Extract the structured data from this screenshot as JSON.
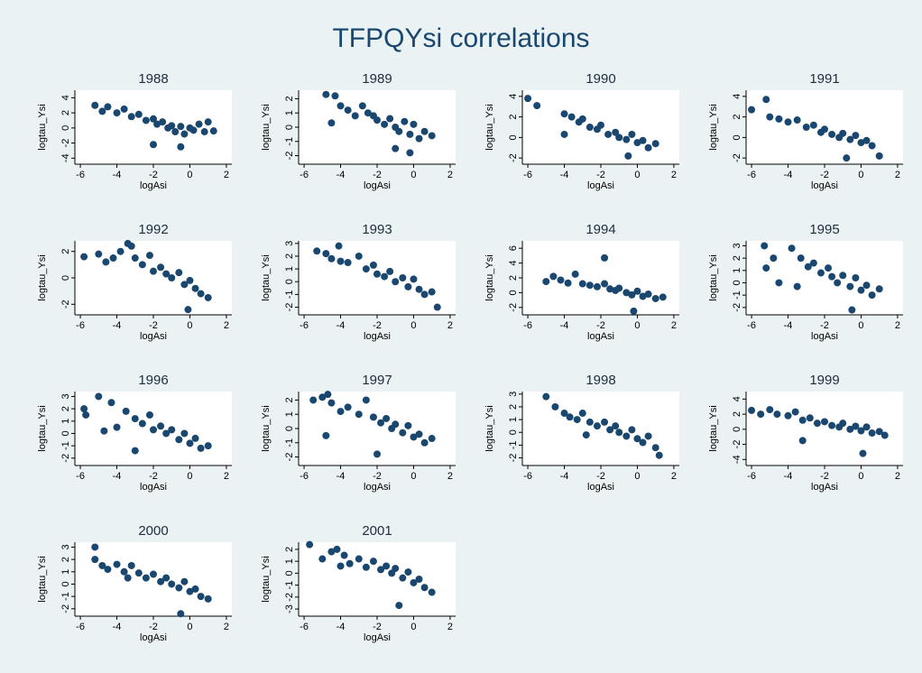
{
  "title": "TFPQYsi correlations",
  "chart_data": [
    {
      "type": "scatter",
      "title": "1988",
      "x_label": "logAsi",
      "y_label": "logtau_Ysi",
      "color": "#1a476f",
      "xlim": [
        -6.3,
        2.3
      ],
      "xticks": [
        -6,
        -4,
        -2,
        0,
        2
      ],
      "ylim": [
        -4.8,
        5
      ],
      "yticks": [
        -4,
        -2,
        0,
        2,
        4
      ],
      "x": [
        -5.2,
        -4.8,
        -4.5,
        -4,
        -3.6,
        -3.2,
        -2.8,
        -2.4,
        -2,
        -1.8,
        -1.5,
        -1.2,
        -1,
        -0.8,
        -0.5,
        -0.3,
        0,
        0.2,
        0.5,
        0.8,
        1,
        1.3,
        -2,
        -0.5
      ],
      "values": [
        3,
        2.2,
        2.8,
        2,
        2.5,
        1.5,
        1.8,
        1,
        1.2,
        0.5,
        0.8,
        0,
        0.3,
        -0.5,
        0.2,
        -0.8,
        0,
        -0.3,
        0.5,
        -0.5,
        0.8,
        -0.4,
        -2.2,
        -2.5
      ]
    },
    {
      "type": "scatter",
      "title": "1989",
      "x_label": "logAsi",
      "y_label": "logtau_Ysi",
      "color": "#1a476f",
      "xlim": [
        -6.3,
        2.3
      ],
      "xticks": [
        -6,
        -4,
        -2,
        0,
        2
      ],
      "ylim": [
        -2.6,
        2.6
      ],
      "yticks": [
        -2,
        -1,
        0,
        1,
        2
      ],
      "x": [
        -4.8,
        -4.3,
        -4,
        -3.6,
        -3.2,
        -2.8,
        -2.5,
        -2.2,
        -2,
        -1.6,
        -1.3,
        -1,
        -0.8,
        -0.5,
        -0.2,
        0,
        0.3,
        0.6,
        1,
        -4.5,
        -0.2,
        -1
      ],
      "values": [
        2.3,
        2.2,
        1.5,
        1.2,
        0.8,
        1.5,
        1,
        0.8,
        0.5,
        0.2,
        0.6,
        0,
        -0.3,
        0.4,
        -0.5,
        0.2,
        -0.8,
        -0.3,
        -0.6,
        0.3,
        -1.8,
        -1.5
      ]
    },
    {
      "type": "scatter",
      "title": "1990",
      "x_label": "logAsi",
      "y_label": "logtau_Ysi",
      "color": "#1a476f",
      "xlim": [
        -6.3,
        2.3
      ],
      "xticks": [
        -6,
        -4,
        -2,
        0,
        2
      ],
      "ylim": [
        -2.6,
        4.6
      ],
      "yticks": [
        -2,
        0,
        2,
        4
      ],
      "x": [
        -6,
        -5.5,
        -4,
        -3.6,
        -3.2,
        -3,
        -2.6,
        -2.2,
        -2,
        -1.6,
        -1.2,
        -1,
        -0.6,
        -0.3,
        0,
        0.3,
        0.6,
        1,
        -4,
        -0.5
      ],
      "values": [
        3.8,
        3.1,
        2.3,
        2,
        1.5,
        1.8,
        1,
        0.8,
        1.2,
        0.3,
        0.5,
        0,
        -0.2,
        0.3,
        -0.5,
        -0.3,
        -1,
        -0.6,
        0.3,
        -1.8
      ]
    },
    {
      "type": "scatter",
      "title": "1991",
      "x_label": "logAsi",
      "y_label": "logtau_Ysi",
      "color": "#1a476f",
      "xlim": [
        -6.3,
        2.3
      ],
      "xticks": [
        -6,
        -4,
        -2,
        0,
        2
      ],
      "ylim": [
        -2.6,
        4.6
      ],
      "yticks": [
        -2,
        0,
        2,
        4
      ],
      "x": [
        -6,
        -5.2,
        -5,
        -4.5,
        -4,
        -3.5,
        -3,
        -2.6,
        -2.2,
        -2,
        -1.6,
        -1.2,
        -1,
        -0.6,
        -0.3,
        0,
        0.3,
        0.6,
        1,
        -0.8
      ],
      "values": [
        2.7,
        3.7,
        2,
        1.8,
        1.5,
        1.7,
        1,
        1.2,
        0.5,
        0.8,
        0.3,
        0,
        0.4,
        -0.2,
        0.2,
        -0.5,
        -0.3,
        -0.8,
        -1.8,
        -2
      ]
    },
    {
      "type": "scatter",
      "title": "1992",
      "x_label": "logAsi",
      "y_label": "logtau_Ysi",
      "color": "#1a476f",
      "xlim": [
        -6.3,
        2.3
      ],
      "xticks": [
        -6,
        -4,
        -2,
        0,
        2
      ],
      "ylim": [
        -2.8,
        2.8
      ],
      "yticks": [
        -2,
        0,
        2
      ],
      "x": [
        -5.8,
        -5,
        -4.6,
        -4.2,
        -3.8,
        -3.4,
        -3,
        -2.6,
        -2.2,
        -2,
        -1.6,
        -1.3,
        -1,
        -0.6,
        -0.3,
        0,
        0.3,
        0.6,
        1,
        -3.2,
        -0.1
      ],
      "values": [
        1.6,
        1.8,
        1.2,
        1.5,
        2,
        2.6,
        1.5,
        1,
        1.7,
        0.5,
        0.8,
        0.3,
        0,
        0.4,
        -0.5,
        -0.2,
        -0.8,
        -1.2,
        -1.5,
        2.4,
        -2.4
      ]
    },
    {
      "type": "scatter",
      "title": "1993",
      "x_label": "logAsi",
      "y_label": "logtau_Ysi",
      "color": "#1a476f",
      "xlim": [
        -6.3,
        2.3
      ],
      "xticks": [
        -6,
        -4,
        -2,
        0,
        2
      ],
      "ylim": [
        -2.6,
        3.2
      ],
      "yticks": [
        -2,
        -1,
        0,
        1,
        2,
        3
      ],
      "x": [
        -5.3,
        -4.8,
        -4.5,
        -4,
        -3.6,
        -3,
        -2.6,
        -2.2,
        -2,
        -1.6,
        -1.3,
        -1,
        -0.6,
        -0.3,
        0,
        0.3,
        0.6,
        1,
        1.3,
        -4.1
      ],
      "values": [
        2.4,
        2.2,
        1.8,
        1.6,
        1.5,
        2,
        1,
        1.3,
        0.6,
        0.4,
        0.8,
        0,
        0.3,
        -0.4,
        0.2,
        -0.6,
        -1,
        -0.8,
        -2,
        2.8
      ]
    },
    {
      "type": "scatter",
      "title": "1994",
      "x_label": "logAsi",
      "y_label": "logtau_Ysi",
      "color": "#1a476f",
      "xlim": [
        -6.3,
        2.3
      ],
      "xticks": [
        -6,
        -4,
        -2,
        0,
        2
      ],
      "ylim": [
        -3,
        7
      ],
      "yticks": [
        -2,
        0,
        2,
        4,
        6
      ],
      "x": [
        -5,
        -4.6,
        -4.2,
        -3.8,
        -3.4,
        -3,
        -2.6,
        -2.2,
        -1.8,
        -1.5,
        -1.2,
        -1,
        -0.6,
        -0.3,
        0,
        0.3,
        0.6,
        1,
        1.4,
        -1.8,
        -0.2
      ],
      "values": [
        1.5,
        2.2,
        1.7,
        1.3,
        2.5,
        1.2,
        1,
        0.8,
        1.2,
        0.5,
        0.3,
        0.6,
        0,
        -0.3,
        0.2,
        -0.5,
        -0.2,
        -0.8,
        -0.6,
        4.7,
        -2.5
      ]
    },
    {
      "type": "scatter",
      "title": "1995",
      "x_label": "logAsi",
      "y_label": "logtau_Ysi",
      "color": "#1a476f",
      "xlim": [
        -6.3,
        2.3
      ],
      "xticks": [
        -6,
        -4,
        -2,
        0,
        2
      ],
      "ylim": [
        -2.6,
        3.4
      ],
      "yticks": [
        -2,
        -1,
        0,
        1,
        2,
        3
      ],
      "x": [
        -5.3,
        -5.2,
        -4.8,
        -4.5,
        -3.8,
        -3.3,
        -2.9,
        -2.6,
        -2.2,
        -1.8,
        -1.6,
        -1.3,
        -1,
        -0.6,
        -0.3,
        0,
        0.3,
        0.6,
        1,
        -3.5,
        -0.5
      ],
      "values": [
        3,
        1.2,
        2,
        0,
        2.8,
        2,
        1.3,
        1.6,
        0.8,
        1.2,
        0.5,
        0,
        0.6,
        -0.3,
        0.4,
        -0.6,
        -0.2,
        -1,
        -0.5,
        -0.3,
        -2.2
      ]
    },
    {
      "type": "scatter",
      "title": "1996",
      "x_label": "logAsi",
      "y_label": "logtau_Ysi",
      "color": "#1a476f",
      "xlim": [
        -6.3,
        2.3
      ],
      "xticks": [
        -6,
        -4,
        -2,
        0,
        2
      ],
      "ylim": [
        -2.6,
        3.4
      ],
      "yticks": [
        -2,
        -1,
        0,
        1,
        2,
        3
      ],
      "x": [
        -5.8,
        -5.7,
        -5,
        -4.7,
        -4.3,
        -4,
        -3.5,
        -3,
        -2.6,
        -2.2,
        -2,
        -1.6,
        -1.3,
        -1,
        -0.6,
        -0.3,
        0,
        0.3,
        0.6,
        1,
        -3
      ],
      "values": [
        2,
        1.5,
        3,
        0.2,
        2.5,
        0.5,
        1.8,
        1.2,
        0.8,
        1.5,
        0.3,
        0.6,
        0,
        0.3,
        -0.5,
        0,
        -0.8,
        -0.4,
        -1.2,
        -1,
        -1.4
      ]
    },
    {
      "type": "scatter",
      "title": "1997",
      "x_label": "logAsi",
      "y_label": "logtau_Ysi",
      "color": "#1a476f",
      "xlim": [
        -6.3,
        2.3
      ],
      "xticks": [
        -6,
        -4,
        -2,
        0,
        2
      ],
      "ylim": [
        -2.6,
        2.6
      ],
      "yticks": [
        -2,
        -1,
        0,
        1,
        2
      ],
      "x": [
        -5.5,
        -5,
        -4.7,
        -4.5,
        -4,
        -3.6,
        -3,
        -2.6,
        -2.2,
        -1.8,
        -1.5,
        -1.2,
        -1,
        -0.6,
        -0.3,
        0,
        0.3,
        0.6,
        1,
        -4.8,
        -2
      ],
      "values": [
        2,
        2.2,
        2.4,
        1.8,
        1.2,
        1.5,
        1,
        2,
        0.8,
        0.4,
        0.7,
        0,
        0.3,
        -0.3,
        0.2,
        -0.6,
        -0.4,
        -1,
        -0.7,
        -0.5,
        -1.8
      ]
    },
    {
      "type": "scatter",
      "title": "1998",
      "x_label": "logAsi",
      "y_label": "logtau_Ysi",
      "color": "#1a476f",
      "xlim": [
        -6.3,
        2.3
      ],
      "xticks": [
        -6,
        -4,
        -2,
        0,
        2
      ],
      "ylim": [
        -2.6,
        3.2
      ],
      "yticks": [
        -2,
        -1,
        0,
        1,
        2,
        3
      ],
      "x": [
        -5,
        -4.5,
        -4,
        -3.7,
        -3.3,
        -3,
        -2.6,
        -2.2,
        -1.8,
        -1.5,
        -1.2,
        -1,
        -0.6,
        -0.3,
        0,
        0.3,
        0.6,
        1,
        1.2,
        -2.8
      ],
      "values": [
        2.8,
        2,
        1.5,
        1.2,
        1,
        1.5,
        0.8,
        0.5,
        0.8,
        0.2,
        0.5,
        0,
        -0.3,
        0.2,
        -0.5,
        -0.8,
        -0.3,
        -1.2,
        -1.8,
        -0.2
      ]
    },
    {
      "type": "scatter",
      "title": "1999",
      "x_label": "logAsi",
      "y_label": "logtau_Ysi",
      "color": "#1a476f",
      "xlim": [
        -6.3,
        2.3
      ],
      "xticks": [
        -6,
        -4,
        -2,
        0,
        2
      ],
      "ylim": [
        -4.8,
        5
      ],
      "yticks": [
        -4,
        -2,
        0,
        2,
        4
      ],
      "x": [
        -6,
        -5.5,
        -5,
        -4.6,
        -4,
        -3.6,
        -3.2,
        -2.8,
        -2.4,
        -2,
        -1.6,
        -1.2,
        -1,
        -0.6,
        -0.3,
        0,
        0.3,
        0.6,
        1,
        1.3,
        -3.2,
        0.1
      ],
      "values": [
        2.5,
        2,
        2.6,
        2,
        1.8,
        2.3,
        1.2,
        1.5,
        0.8,
        1,
        0.5,
        0.3,
        0.8,
        0,
        0.4,
        -0.2,
        0.3,
        -0.5,
        -0.3,
        -0.8,
        -1.5,
        -3.2
      ]
    },
    {
      "type": "scatter",
      "title": "2000",
      "x_label": "logAsi",
      "y_label": "logtau_Ysi",
      "color": "#1a476f",
      "xlim": [
        -6.3,
        2.3
      ],
      "xticks": [
        -6,
        -4,
        -2,
        0,
        2
      ],
      "ylim": [
        -2.6,
        3.4
      ],
      "yticks": [
        -2,
        -1,
        0,
        1,
        2,
        3
      ],
      "x": [
        -5.2,
        -5.2,
        -4.8,
        -4.5,
        -4,
        -3.6,
        -3.2,
        -2.8,
        -2.4,
        -2,
        -1.6,
        -1.3,
        -1,
        -0.6,
        -0.3,
        0,
        0.3,
        0.6,
        1,
        -3.4,
        -0.5
      ],
      "values": [
        3,
        2,
        1.5,
        1.2,
        1.6,
        1,
        1.5,
        0.9,
        0.5,
        0.8,
        0.2,
        0.5,
        0,
        -0.3,
        0.2,
        -0.6,
        -0.4,
        -1,
        -1.2,
        0.5,
        -2.4
      ]
    },
    {
      "type": "scatter",
      "title": "2001",
      "x_label": "logAsi",
      "y_label": "logtau_Ysi",
      "color": "#1a476f",
      "xlim": [
        -6.3,
        2.3
      ],
      "xticks": [
        -6,
        -4,
        -2,
        0,
        2
      ],
      "ylim": [
        -3.6,
        2.6
      ],
      "yticks": [
        -3,
        -2,
        -1,
        0,
        1,
        2
      ],
      "x": [
        -5.7,
        -5,
        -4.5,
        -4.2,
        -3.8,
        -3.5,
        -3,
        -2.6,
        -2.2,
        -1.8,
        -1.5,
        -1.2,
        -1,
        -0.6,
        -0.3,
        0,
        0.3,
        0.6,
        1,
        -0.8,
        -4
      ],
      "values": [
        2.4,
        1.2,
        1.8,
        2,
        1.5,
        0.8,
        1.2,
        0.5,
        1,
        0.3,
        0.6,
        0,
        0.4,
        -0.4,
        0.1,
        -0.8,
        -0.5,
        -1.2,
        -1.6,
        -2.7,
        0.6
      ]
    }
  ]
}
